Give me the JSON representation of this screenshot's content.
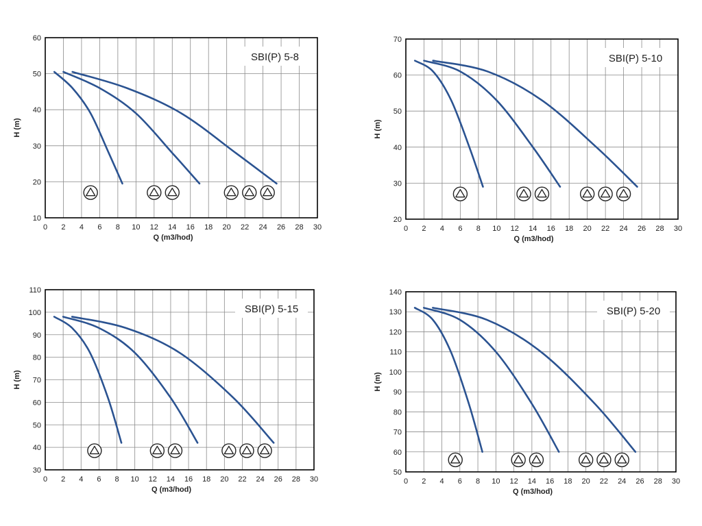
{
  "pump_icon": "circled-triangle-icon",
  "colors": {
    "curve": "#2b5391",
    "grid": "#8a8a8a",
    "frame": "#000000",
    "text": "#222222",
    "background": "#ffffff"
  },
  "chart_data": [
    {
      "type": "line",
      "title": "SBI(P) 5-8",
      "xlabel": "Q (m3/hod)",
      "ylabel": "H (m)",
      "xlim": [
        0,
        30
      ],
      "ylim": [
        10,
        60
      ],
      "xticks": [
        0,
        2,
        4,
        6,
        8,
        10,
        12,
        14,
        16,
        18,
        20,
        22,
        24,
        26,
        28,
        30
      ],
      "yticks": [
        10,
        20,
        30,
        40,
        50,
        60
      ],
      "grid": true,
      "series": [
        {
          "pumps": 1,
          "x": [
            1,
            3,
            5,
            7,
            8.5
          ],
          "y": [
            50.5,
            46,
            39,
            28,
            19.5
          ]
        },
        {
          "pumps": 2,
          "x": [
            2,
            6,
            10,
            14,
            17
          ],
          "y": [
            50.5,
            46,
            39,
            28,
            19.5
          ]
        },
        {
          "pumps": 3,
          "x": [
            3,
            9,
            15,
            21,
            25.5
          ],
          "y": [
            50.5,
            46,
            39,
            28,
            19.5
          ]
        }
      ],
      "pump_markers": [
        {
          "pumps": 1,
          "x": [
            5
          ],
          "y": 17
        },
        {
          "pumps": 2,
          "x": [
            12,
            14
          ],
          "y": 17
        },
        {
          "pumps": 3,
          "x": [
            20.5,
            22.5,
            24.5
          ],
          "y": 17
        }
      ]
    },
    {
      "type": "line",
      "title": "SBI(P) 5-10",
      "xlabel": "Q (m3/hod)",
      "ylabel": "H (m)",
      "xlim": [
        0,
        30
      ],
      "ylim": [
        20,
        70
      ],
      "xticks": [
        0,
        2,
        4,
        6,
        8,
        10,
        12,
        14,
        16,
        18,
        20,
        22,
        24,
        26,
        28,
        30
      ],
      "yticks": [
        20,
        30,
        40,
        50,
        60,
        70
      ],
      "grid": true,
      "series": [
        {
          "pumps": 1,
          "x": [
            1,
            3,
            5,
            7,
            8.5
          ],
          "y": [
            64,
            61,
            53,
            40,
            29
          ]
        },
        {
          "pumps": 2,
          "x": [
            2,
            6,
            10,
            14,
            17
          ],
          "y": [
            64,
            61,
            53,
            40,
            29
          ]
        },
        {
          "pumps": 3,
          "x": [
            3,
            9,
            15,
            21,
            25.5
          ],
          "y": [
            64,
            61,
            53,
            40,
            29
          ]
        }
      ],
      "pump_markers": [
        {
          "pumps": 1,
          "x": [
            6
          ],
          "y": 27
        },
        {
          "pumps": 2,
          "x": [
            13,
            15
          ],
          "y": 27
        },
        {
          "pumps": 3,
          "x": [
            20,
            22,
            24
          ],
          "y": 27
        }
      ]
    },
    {
      "type": "line",
      "title": "SBI(P) 5-15",
      "xlabel": "Q (m3/hod)",
      "ylabel": "H (m)",
      "xlim": [
        0,
        30
      ],
      "ylim": [
        30,
        110
      ],
      "xticks": [
        0,
        2,
        4,
        6,
        8,
        10,
        12,
        14,
        16,
        18,
        20,
        22,
        24,
        26,
        28,
        30
      ],
      "yticks": [
        30,
        40,
        50,
        60,
        70,
        80,
        90,
        100,
        110
      ],
      "grid": true,
      "series": [
        {
          "pumps": 1,
          "x": [
            1,
            3,
            5,
            7,
            8.5
          ],
          "y": [
            98,
            93,
            82,
            62,
            42
          ]
        },
        {
          "pumps": 2,
          "x": [
            2,
            6,
            10,
            14,
            17
          ],
          "y": [
            98,
            93,
            82,
            62,
            42
          ]
        },
        {
          "pumps": 3,
          "x": [
            3,
            9,
            15,
            21,
            25.5
          ],
          "y": [
            98,
            93,
            82,
            62,
            42
          ]
        }
      ],
      "pump_markers": [
        {
          "pumps": 1,
          "x": [
            5.5
          ],
          "y": 38.5
        },
        {
          "pumps": 2,
          "x": [
            12.5,
            14.5
          ],
          "y": 38.5
        },
        {
          "pumps": 3,
          "x": [
            20.5,
            22.5,
            24.5
          ],
          "y": 38.5
        }
      ]
    },
    {
      "type": "line",
      "title": "SBI(P) 5-20",
      "xlabel": "Q (m3/hod)",
      "ylabel": "H (m)",
      "xlim": [
        0,
        30
      ],
      "ylim": [
        50,
        140
      ],
      "xticks": [
        0,
        2,
        4,
        6,
        8,
        10,
        12,
        14,
        16,
        18,
        20,
        22,
        24,
        26,
        28,
        30
      ],
      "yticks": [
        50,
        60,
        70,
        80,
        90,
        100,
        110,
        120,
        130,
        140
      ],
      "grid": true,
      "series": [
        {
          "pumps": 1,
          "x": [
            1,
            3,
            5,
            7,
            8.5
          ],
          "y": [
            132,
            126,
            110,
            84,
            60
          ]
        },
        {
          "pumps": 2,
          "x": [
            2,
            6,
            10,
            14,
            17
          ],
          "y": [
            132,
            126,
            110,
            84,
            60
          ]
        },
        {
          "pumps": 3,
          "x": [
            3,
            9,
            15,
            21,
            25.5
          ],
          "y": [
            132,
            126,
            110,
            84,
            60
          ]
        }
      ],
      "pump_markers": [
        {
          "pumps": 1,
          "x": [
            5.5
          ],
          "y": 56
        },
        {
          "pumps": 2,
          "x": [
            12.5,
            14.5
          ],
          "y": 56
        },
        {
          "pumps": 3,
          "x": [
            20,
            22,
            24
          ],
          "y": 56
        }
      ]
    }
  ]
}
